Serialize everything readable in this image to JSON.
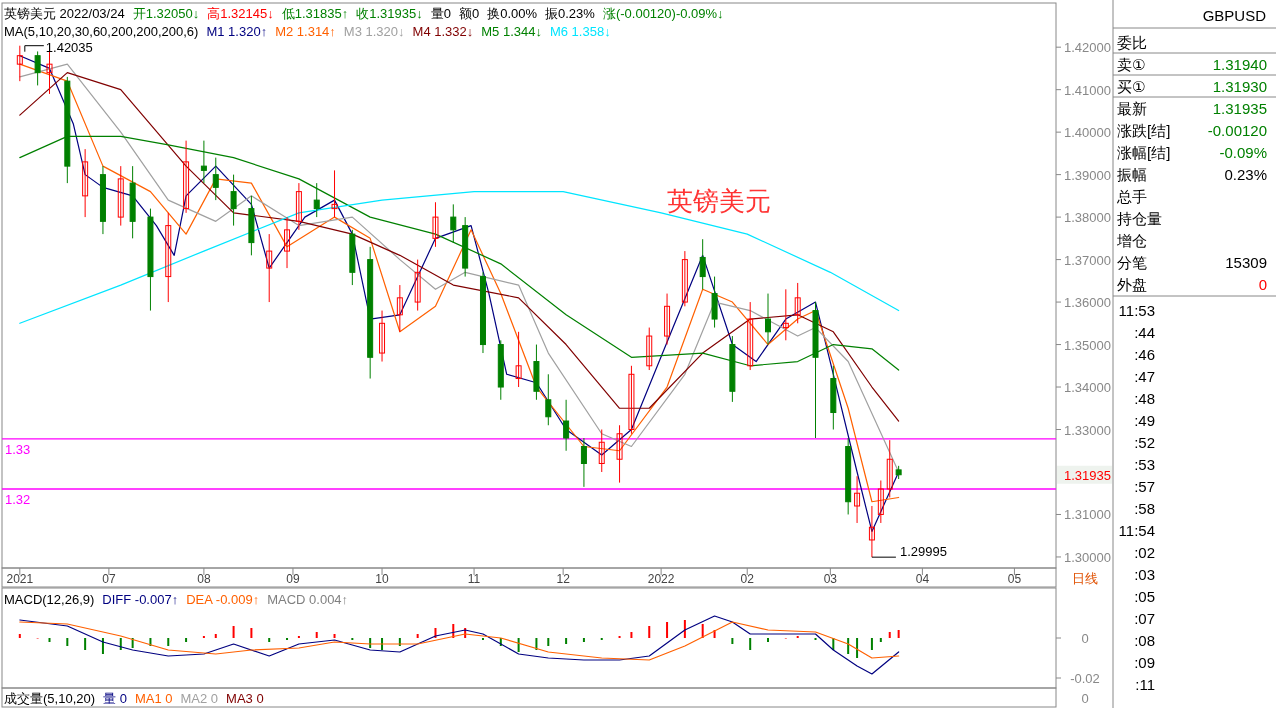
{
  "chart_data": [
    {
      "type": "candlestick",
      "title": "英镑美元 2022/03/24",
      "annotations": [
        "开1.32050↓",
        "高1.32145↓",
        "低1.31835↑",
        "收1.31935↓",
        "量0",
        "额0",
        "换0.00%",
        "振0.23%",
        "涨(-0.00120)-0.09%↓",
        "MA(5,10,20,30,60,200,200,200,6)",
        {
          "text": "1.42035",
          "x": "2021-06-01",
          "y": 1.42035
        },
        {
          "text": "1.29995",
          "x": "2022-03-15",
          "y": 1.29995
        },
        "英镑美元",
        "1.31935",
        "日线"
      ],
      "x": [
        "2021-06-01",
        "2021-06-07",
        "2021-06-11",
        "2021-06-17",
        "2021-06-23",
        "2021-06-29",
        "2021-07-05",
        "2021-07-09",
        "2021-07-15",
        "2021-07-21",
        "2021-07-27",
        "2021-08-02",
        "2021-08-06",
        "2021-08-12",
        "2021-08-18",
        "2021-08-24",
        "2021-08-30",
        "2021-09-03",
        "2021-09-09",
        "2021-09-15",
        "2021-09-21",
        "2021-09-27",
        "2021-10-01",
        "2021-10-07",
        "2021-10-13",
        "2021-10-19",
        "2021-10-25",
        "2021-10-29",
        "2021-11-04",
        "2021-11-10",
        "2021-11-16",
        "2021-11-22",
        "2021-11-26",
        "2021-12-02",
        "2021-12-08",
        "2021-12-14",
        "2021-12-20",
        "2021-12-24",
        "2021-12-30",
        "2022-01-05",
        "2022-01-11",
        "2022-01-17",
        "2022-01-21",
        "2022-01-27",
        "2022-02-02",
        "2022-02-08",
        "2022-02-14",
        "2022-02-18",
        "2022-02-24",
        "2022-03-02",
        "2022-03-07",
        "2022-03-10",
        "2022-03-15",
        "2022-03-18",
        "2022-03-21",
        "2022-03-24"
      ],
      "ohlc": [
        [
          1.416,
          1.42035,
          1.412,
          1.418
        ],
        [
          1.418,
          1.419,
          1.411,
          1.414
        ],
        [
          1.414,
          1.419,
          1.409,
          1.416
        ],
        [
          1.412,
          1.413,
          1.388,
          1.392
        ],
        [
          1.385,
          1.396,
          1.38,
          1.393
        ],
        [
          1.39,
          1.392,
          1.376,
          1.379
        ],
        [
          1.38,
          1.392,
          1.378,
          1.389
        ],
        [
          1.388,
          1.392,
          1.375,
          1.379
        ],
        [
          1.38,
          1.382,
          1.358,
          1.366
        ],
        [
          1.366,
          1.381,
          1.36,
          1.378
        ],
        [
          1.382,
          1.398,
          1.381,
          1.393
        ],
        [
          1.392,
          1.398,
          1.388,
          1.391
        ],
        [
          1.39,
          1.394,
          1.384,
          1.387
        ],
        [
          1.386,
          1.39,
          1.378,
          1.382
        ],
        [
          1.382,
          1.385,
          1.371,
          1.374
        ],
        [
          1.368,
          1.376,
          1.36,
          1.372
        ],
        [
          1.372,
          1.38,
          1.368,
          1.377
        ],
        [
          1.379,
          1.388,
          1.377,
          1.386
        ],
        [
          1.384,
          1.388,
          1.38,
          1.382
        ],
        [
          1.382,
          1.391,
          1.38,
          1.383
        ],
        [
          1.376,
          1.377,
          1.364,
          1.367
        ],
        [
          1.37,
          1.373,
          1.342,
          1.347
        ],
        [
          1.348,
          1.358,
          1.346,
          1.355
        ],
        [
          1.357,
          1.364,
          1.353,
          1.361
        ],
        [
          1.36,
          1.37,
          1.358,
          1.367
        ],
        [
          1.375,
          1.3835,
          1.373,
          1.38
        ],
        [
          1.38,
          1.383,
          1.374,
          1.377
        ],
        [
          1.378,
          1.38,
          1.366,
          1.368
        ],
        [
          1.366,
          1.367,
          1.348,
          1.35
        ],
        [
          1.35,
          1.351,
          1.337,
          1.34
        ],
        [
          1.342,
          1.353,
          1.34,
          1.345
        ],
        [
          1.346,
          1.35,
          1.337,
          1.339
        ],
        [
          1.337,
          1.343,
          1.331,
          1.333
        ],
        [
          1.332,
          1.337,
          1.325,
          1.328
        ],
        [
          1.326,
          1.328,
          1.3165,
          1.322
        ],
        [
          1.322,
          1.33,
          1.32,
          1.327
        ],
        [
          1.323,
          1.331,
          1.3175,
          1.329
        ],
        [
          1.33,
          1.345,
          1.329,
          1.343
        ],
        [
          1.345,
          1.354,
          1.344,
          1.352
        ],
        [
          1.352,
          1.362,
          1.35,
          1.359
        ],
        [
          1.36,
          1.372,
          1.359,
          1.37
        ],
        [
          1.3705,
          1.3748,
          1.363,
          1.366
        ],
        [
          1.362,
          1.366,
          1.354,
          1.356
        ],
        [
          1.35,
          1.352,
          1.3365,
          1.339
        ],
        [
          1.345,
          1.36,
          1.344,
          1.356
        ],
        [
          1.356,
          1.362,
          1.35,
          1.353
        ],
        [
          1.354,
          1.363,
          1.351,
          1.355
        ],
        [
          1.357,
          1.3645,
          1.355,
          1.361
        ],
        [
          1.358,
          1.36,
          1.328,
          1.347
        ],
        [
          1.342,
          1.345,
          1.33,
          1.334
        ],
        [
          1.326,
          1.328,
          1.31,
          1.313
        ],
        [
          1.312,
          1.319,
          1.308,
          1.315
        ],
        [
          1.304,
          1.312,
          1.29995,
          1.307
        ],
        [
          1.31,
          1.318,
          1.308,
          1.316
        ],
        [
          1.316,
          1.3275,
          1.314,
          1.323
        ],
        [
          1.3205,
          1.32145,
          1.31835,
          1.31935
        ]
      ],
      "colors": [
        "#ff0000",
        "#008000",
        "#ff0000",
        "#008000",
        "#ff0000",
        "#008000",
        "#ff0000",
        "#008000",
        "#008000",
        "#ff0000",
        "#ff0000",
        "#008000",
        "#008000",
        "#008000",
        "#008000",
        "#ff0000",
        "#ff0000",
        "#ff0000",
        "#008000",
        "#ff0000",
        "#008000",
        "#008000",
        "#ff0000",
        "#ff0000",
        "#ff0000",
        "#ff0000",
        "#008000",
        "#008000",
        "#008000",
        "#008000",
        "#ff0000",
        "#008000",
        "#008000",
        "#008000",
        "#008000",
        "#ff0000",
        "#ff0000",
        "#ff0000",
        "#ff0000",
        "#ff0000",
        "#ff0000",
        "#008000",
        "#008000",
        "#008000",
        "#ff0000",
        "#008000",
        "#ff0000",
        "#ff0000",
        "#008000",
        "#008000",
        "#008000",
        "#ff0000",
        "#ff0000",
        "#ff0000",
        "#ff0000",
        "#008000"
      ],
      "series": [
        {
          "name": "M1 1.320↑",
          "type": "line",
          "color": "#000080",
          "x": [
            "2021-06-01",
            "2021-06-11",
            "2021-06-19",
            "2021-06-23",
            "2021-06-29",
            "2021-07-09",
            "2021-07-17",
            "2021-07-23",
            "2021-07-27",
            "2021-08-06",
            "2021-08-18",
            "2021-08-24",
            "2021-09-05",
            "2021-09-15",
            "2021-09-21",
            "2021-09-27",
            "2021-10-07",
            "2021-10-19",
            "2021-10-31",
            "2021-11-06",
            "2021-11-12",
            "2021-11-22",
            "2021-12-02",
            "2021-12-14",
            "2021-12-24",
            "2022-01-07",
            "2022-01-17",
            "2022-01-27",
            "2022-02-04",
            "2022-02-14",
            "2022-02-24",
            "2022-03-02",
            "2022-03-10",
            "2022-03-15",
            "2022-03-24"
          ],
          "values": [
            1.418,
            1.415,
            1.402,
            1.39,
            1.387,
            1.385,
            1.378,
            1.371,
            1.385,
            1.392,
            1.383,
            1.368,
            1.38,
            1.384,
            1.376,
            1.356,
            1.357,
            1.375,
            1.378,
            1.362,
            1.343,
            1.341,
            1.33,
            1.324,
            1.33,
            1.354,
            1.371,
            1.35,
            1.346,
            1.356,
            1.36,
            1.343,
            1.32,
            1.306,
            1.32
          ]
        },
        {
          "name": "M2 1.314↑",
          "type": "line",
          "color": "#ff6000",
          "x": [
            "2021-06-01",
            "2021-06-17",
            "2021-06-29",
            "2021-07-15",
            "2021-07-27",
            "2021-08-06",
            "2021-08-18",
            "2021-08-30",
            "2021-09-15",
            "2021-09-27",
            "2021-10-07",
            "2021-10-19",
            "2021-10-31",
            "2021-11-10",
            "2021-11-22",
            "2021-12-08",
            "2021-12-20",
            "2022-01-05",
            "2022-01-17",
            "2022-01-27",
            "2022-02-08",
            "2022-02-18",
            "2022-02-24",
            "2022-03-07",
            "2022-03-15",
            "2022-03-24"
          ],
          "values": [
            1.416,
            1.412,
            1.392,
            1.386,
            1.376,
            1.389,
            1.388,
            1.373,
            1.38,
            1.375,
            1.353,
            1.359,
            1.377,
            1.362,
            1.34,
            1.326,
            1.325,
            1.34,
            1.363,
            1.36,
            1.35,
            1.356,
            1.358,
            1.335,
            1.313,
            1.314
          ]
        },
        {
          "name": "M3 1.320↓",
          "type": "line",
          "color": "#a0a0a0",
          "x": [
            "2021-06-01",
            "2021-06-17",
            "2021-07-05",
            "2021-07-21",
            "2021-08-06",
            "2021-08-18",
            "2021-09-03",
            "2021-09-21",
            "2021-10-07",
            "2021-10-19",
            "2021-10-29",
            "2021-11-16",
            "2021-11-26",
            "2021-12-14",
            "2021-12-24",
            "2022-01-11",
            "2022-01-21",
            "2022-02-02",
            "2022-02-18",
            "2022-02-24",
            "2022-03-07",
            "2022-03-24"
          ],
          "values": [
            1.413,
            1.416,
            1.4,
            1.384,
            1.379,
            1.385,
            1.378,
            1.38,
            1.37,
            1.363,
            1.367,
            1.364,
            1.348,
            1.329,
            1.326,
            1.343,
            1.36,
            1.358,
            1.352,
            1.354,
            1.346,
            1.32
          ]
        },
        {
          "name": "M4 1.332↓",
          "type": "line",
          "color": "#800000",
          "x": [
            "2021-06-01",
            "2021-06-17",
            "2021-07-05",
            "2021-07-27",
            "2021-08-12",
            "2021-09-03",
            "2021-09-21",
            "2021-10-07",
            "2021-10-25",
            "2021-11-16",
            "2021-12-02",
            "2021-12-20",
            "2021-12-30",
            "2022-01-17",
            "2022-02-02",
            "2022-02-18",
            "2022-03-02",
            "2022-03-15",
            "2022-03-24"
          ],
          "values": [
            1.404,
            1.414,
            1.41,
            1.392,
            1.381,
            1.379,
            1.376,
            1.371,
            1.364,
            1.361,
            1.35,
            1.335,
            1.335,
            1.348,
            1.356,
            1.357,
            1.353,
            1.34,
            1.332
          ]
        },
        {
          "name": "M5 1.344↓",
          "type": "line",
          "color": "#008000",
          "x": [
            "2021-06-01",
            "2021-06-17",
            "2021-07-05",
            "2021-07-21",
            "2021-08-12",
            "2021-09-03",
            "2021-09-27",
            "2021-10-19",
            "2021-11-10",
            "2021-12-02",
            "2021-12-24",
            "2022-01-17",
            "2022-02-02",
            "2022-02-18",
            "2022-03-02",
            "2022-03-15",
            "2022-03-24"
          ],
          "values": [
            1.394,
            1.399,
            1.399,
            1.397,
            1.394,
            1.389,
            1.38,
            1.376,
            1.369,
            1.357,
            1.347,
            1.348,
            1.345,
            1.346,
            1.35,
            1.349,
            1.344
          ]
        },
        {
          "name": "M6 1.358↓",
          "type": "line",
          "color": "#00e5ff",
          "x": [
            "2021-06-01",
            "2021-07-05",
            "2021-08-02",
            "2021-09-03",
            "2021-10-01",
            "2021-11-01",
            "2021-12-01",
            "2022-01-03",
            "2022-02-01",
            "2022-03-01",
            "2022-03-24"
          ],
          "values": [
            1.355,
            1.364,
            1.372,
            1.381,
            1.384,
            1.386,
            1.386,
            1.381,
            1.376,
            1.367,
            1.358
          ]
        }
      ],
      "xlim": [
        "2021-05-26",
        "2022-05-16"
      ],
      "xticks": [
        {
          "value": "2021-06-01",
          "label": "2021"
        },
        {
          "value": "2021-07-01",
          "label": "07"
        },
        {
          "value": "2021-08-02",
          "label": "08"
        },
        {
          "value": "2021-09-01",
          "label": "09"
        },
        {
          "value": "2021-10-01",
          "label": "10"
        },
        {
          "value": "2021-11-01",
          "label": "11"
        },
        {
          "value": "2021-12-01",
          "label": "12"
        },
        {
          "value": "2022-01-03",
          "label": "2022"
        },
        {
          "value": "2022-02-01",
          "label": "02"
        },
        {
          "value": "2022-03-01",
          "label": "03"
        },
        {
          "value": "2022-04-01",
          "label": "04"
        },
        {
          "value": "2022-05-02",
          "label": "05"
        }
      ],
      "ylim": [
        1.2974,
        1.4304
      ],
      "yticks": [
        {
          "value": 1.3,
          "label": "1.30000"
        },
        {
          "value": 1.31,
          "label": "1.31000"
        },
        {
          "value": 1.33,
          "label": "1.33000"
        },
        {
          "value": 1.34,
          "label": "1.34000"
        },
        {
          "value": 1.35,
          "label": "1.35000"
        },
        {
          "value": 1.36,
          "label": "1.36000"
        },
        {
          "value": 1.37,
          "label": "1.37000"
        },
        {
          "value": 1.38,
          "label": "1.38000"
        },
        {
          "value": 1.39,
          "label": "1.39000"
        },
        {
          "value": 1.4,
          "label": "1.40000"
        },
        {
          "value": 1.41,
          "label": "1.41000"
        },
        {
          "value": 1.42,
          "label": "1.42000"
        }
      ],
      "ref_lines": [
        {
          "axis": "y",
          "value": 1.3278,
          "label": "1.33",
          "color": "#ff00ff"
        },
        {
          "axis": "y",
          "value": 1.316,
          "label": "1.32",
          "color": "#ff00ff"
        }
      ],
      "legend": "top left"
    },
    {
      "type": "bar",
      "title": "MACD(12,26,9)",
      "series": [
        {
          "name": "DIFF -0.007↑",
          "type": "line",
          "color": "#000080",
          "x": [
            "2021-06-01",
            "2021-06-17",
            "2021-06-29",
            "2021-07-09",
            "2021-07-21",
            "2021-08-02",
            "2021-08-12",
            "2021-08-24",
            "2021-09-03",
            "2021-09-15",
            "2021-09-27",
            "2021-10-07",
            "2021-10-19",
            "2021-10-29",
            "2021-11-04",
            "2021-11-16",
            "2021-11-26",
            "2021-12-08",
            "2021-12-20",
            "2021-12-30",
            "2022-01-11",
            "2022-01-21",
            "2022-01-27",
            "2022-02-02",
            "2022-02-14",
            "2022-02-24",
            "2022-03-02",
            "2022-03-10",
            "2022-03-15",
            "2022-03-24"
          ],
          "values": [
            0.009,
            0.006,
            -0.002,
            -0.006,
            -0.009,
            -0.008,
            -0.003,
            -0.009,
            -0.003,
            -0.001,
            -0.006,
            -0.007,
            0.001,
            0.004,
            0.002,
            -0.008,
            -0.01,
            -0.011,
            -0.011,
            -0.009,
            0.004,
            0.011,
            0.008,
            0.002,
            0.002,
            0.002,
            -0.006,
            -0.014,
            -0.018,
            -0.007
          ]
        },
        {
          "name": "DEA -0.009↑",
          "type": "line",
          "color": "#ff6000",
          "x": [
            "2021-06-01",
            "2021-06-17",
            "2021-07-05",
            "2021-07-21",
            "2021-08-06",
            "2021-08-18",
            "2021-09-03",
            "2021-09-15",
            "2021-09-27",
            "2021-10-13",
            "2021-10-29",
            "2021-11-10",
            "2021-11-26",
            "2021-12-14",
            "2021-12-30",
            "2022-01-11",
            "2022-01-27",
            "2022-02-08",
            "2022-02-24",
            "2022-03-07",
            "2022-03-15",
            "2022-03-24"
          ],
          "values": [
            0.008,
            0.007,
            0.001,
            -0.006,
            -0.008,
            -0.006,
            -0.005,
            -0.002,
            -0.003,
            -0.003,
            0.002,
            0.0,
            -0.007,
            -0.01,
            -0.011,
            -0.004,
            0.008,
            0.004,
            0.003,
            -0.003,
            -0.01,
            -0.009
          ]
        },
        {
          "name": "MACD 0.004↑",
          "type": "bar",
          "color": "#808080",
          "x": [
            "2021-06-01",
            "2021-06-07",
            "2021-06-11",
            "2021-06-17",
            "2021-06-23",
            "2021-06-29",
            "2021-07-05",
            "2021-07-09",
            "2021-07-15",
            "2021-07-21",
            "2021-07-27",
            "2021-08-02",
            "2021-08-06",
            "2021-08-12",
            "2021-08-18",
            "2021-08-24",
            "2021-08-30",
            "2021-09-03",
            "2021-09-09",
            "2021-09-15",
            "2021-09-21",
            "2021-09-27",
            "2021-10-01",
            "2021-10-07",
            "2021-10-13",
            "2021-10-19",
            "2021-10-25",
            "2021-10-29",
            "2021-11-04",
            "2021-11-10",
            "2021-11-16",
            "2021-11-22",
            "2021-11-26",
            "2021-12-02",
            "2021-12-08",
            "2021-12-14",
            "2021-12-20",
            "2021-12-24",
            "2021-12-30",
            "2022-01-05",
            "2022-01-11",
            "2022-01-17",
            "2022-01-21",
            "2022-01-27",
            "2022-02-02",
            "2022-02-08",
            "2022-02-14",
            "2022-02-18",
            "2022-02-24",
            "2022-03-02",
            "2022-03-07",
            "2022-03-10",
            "2022-03-15",
            "2022-03-18",
            "2022-03-21",
            "2022-03-24"
          ],
          "values": [
            0.002,
            0.0,
            -0.002,
            -0.004,
            -0.006,
            -0.008,
            -0.006,
            -0.005,
            -0.004,
            -0.004,
            -0.002,
            0.001,
            0.002,
            0.006,
            0.005,
            -0.002,
            -0.001,
            0.001,
            0.003,
            0.002,
            -0.001,
            -0.005,
            -0.006,
            -0.004,
            0.002,
            0.005,
            0.007,
            0.005,
            -0.001,
            -0.004,
            -0.007,
            -0.006,
            -0.004,
            -0.003,
            -0.002,
            -0.001,
            0.001,
            0.003,
            0.006,
            0.008,
            0.009,
            0.007,
            0.004,
            -0.003,
            -0.006,
            -0.002,
            0.0,
            0.001,
            -0.001,
            -0.006,
            -0.008,
            -0.01,
            -0.006,
            -0.002,
            0.003,
            0.004
          ],
          "colors": [
            "#ff0000",
            "#ff0000",
            "#008000",
            "#008000",
            "#008000",
            "#008000",
            "#008000",
            "#008000",
            "#008000",
            "#008000",
            "#008000",
            "#ff0000",
            "#ff0000",
            "#ff0000",
            "#ff0000",
            "#008000",
            "#008000",
            "#ff0000",
            "#ff0000",
            "#ff0000",
            "#008000",
            "#008000",
            "#008000",
            "#008000",
            "#ff0000",
            "#ff0000",
            "#ff0000",
            "#ff0000",
            "#008000",
            "#008000",
            "#008000",
            "#008000",
            "#008000",
            "#008000",
            "#008000",
            "#008000",
            "#ff0000",
            "#ff0000",
            "#ff0000",
            "#ff0000",
            "#ff0000",
            "#ff0000",
            "#ff0000",
            "#008000",
            "#008000",
            "#008000",
            "#ff0000",
            "#ff0000",
            "#008000",
            "#008000",
            "#008000",
            "#008000",
            "#008000",
            "#008000",
            "#ff0000",
            "#ff0000"
          ]
        }
      ],
      "xlim": [
        "2021-05-26",
        "2022-05-16"
      ],
      "ylim": [
        -0.025,
        0.024
      ],
      "yticks": [
        0,
        -0.02
      ],
      "tick_labels": "y",
      "legend": "top left"
    },
    {
      "type": "other",
      "title": "成交量(5,10,20)",
      "categories": [
        "量",
        "MA1",
        "MA2",
        "MA3"
      ],
      "value_labels": [
        "0",
        "0",
        "0",
        "0"
      ],
      "colors": [
        "#000080",
        "#ff6000",
        "#a0a0a0",
        "#800000"
      ],
      "annotations": [
        "0"
      ]
    },
    {
      "type": "other",
      "categories": [
        "委比",
        "卖①",
        "买①",
        "最新",
        "涨跌[结]",
        "涨幅[结]",
        "振幅",
        "总手",
        "持仓量",
        "增仓",
        "分笔",
        "外盘"
      ],
      "value_labels": [
        null,
        "1.31940",
        "1.31930",
        "1.31935",
        "-0.00120",
        "-0.09%",
        "0.23%",
        null,
        null,
        null,
        "15309",
        "0"
      ],
      "colors": [
        "#000000",
        "#008000",
        "#008000",
        "#008000",
        "#008000",
        "#008000",
        "#000000",
        "#000000",
        "#000000",
        "#000000",
        "#000000",
        "#ff0000"
      ],
      "annotations": [
        "GBPUSD",
        "11:53",
        ":44",
        ":46",
        ":47",
        ":48",
        ":49",
        ":52",
        ":53",
        ":57",
        ":58",
        "11:54",
        ":02",
        ":03",
        ":05",
        ":07",
        ":08",
        ":09",
        ":11"
      ]
    }
  ]
}
